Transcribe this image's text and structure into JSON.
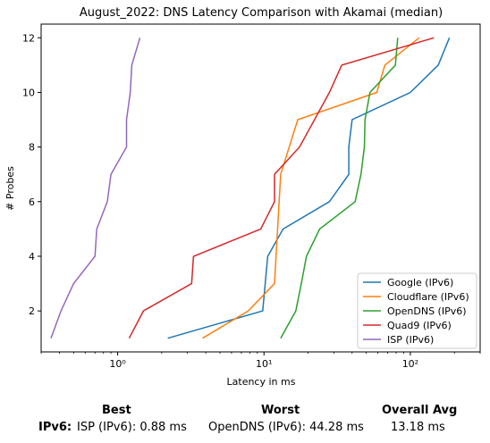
{
  "chart_data": {
    "type": "line",
    "title": "August_2022: DNS Latency Comparison with Akamai (median)",
    "xlabel": "Latency in ms",
    "ylabel": "# Probes",
    "xscale": "log",
    "xlim": [
      0.3,
      300
    ],
    "ylim": [
      0.5,
      12.5
    ],
    "x_ticks": [
      1,
      10,
      100
    ],
    "x_tick_labels": [
      "10⁰",
      "10¹",
      "10²"
    ],
    "y_ticks": [
      2,
      4,
      6,
      8,
      10,
      12
    ],
    "grid": false,
    "legend_position": "lower-right",
    "series": [
      {
        "name": "Google (IPv6)",
        "color": "#1f77b4",
        "x": [
          2.2,
          9.8,
          10.6,
          13.5,
          28.0,
          38.0,
          38.0,
          40.0,
          100.0,
          155.0,
          185.0
        ],
        "y": [
          1,
          2,
          4,
          5,
          6,
          7,
          8,
          9,
          10,
          11,
          12
        ]
      },
      {
        "name": "Cloudflare (IPv6)",
        "color": "#ff7f0e",
        "x": [
          3.8,
          7.8,
          11.8,
          13.0,
          17.0,
          59.0,
          67.0,
          115.0
        ],
        "y": [
          1,
          2,
          3,
          7,
          9,
          10,
          11,
          12
        ]
      },
      {
        "name": "OpenDNS (IPv6)",
        "color": "#2ca02c",
        "x": [
          13.0,
          16.5,
          18.0,
          19.5,
          24.0,
          42.0,
          46.0,
          48.5,
          49.0,
          53.0,
          79.0,
          82.0
        ],
        "y": [
          1,
          2,
          3,
          4,
          5,
          6,
          7,
          8,
          9,
          10,
          11,
          12
        ]
      },
      {
        "name": "Quad9 (IPv6)",
        "color": "#d62728",
        "x": [
          1.2,
          1.5,
          3.2,
          3.3,
          9.5,
          11.8,
          11.8,
          17.5,
          28.0,
          34.0,
          145.0
        ],
        "y": [
          1,
          2,
          3,
          4,
          5,
          6,
          7,
          8,
          10,
          11,
          12
        ]
      },
      {
        "name": "ISP (IPv6)",
        "color": "#9467bd",
        "x": [
          0.35,
          0.41,
          0.5,
          0.7,
          0.72,
          0.85,
          0.9,
          1.15,
          1.15,
          1.22,
          1.25,
          1.42
        ],
        "y": [
          1,
          2,
          3,
          4,
          5,
          6,
          7,
          8,
          9,
          10,
          11,
          12
        ]
      }
    ]
  },
  "summary": {
    "best_header": "Best",
    "worst_header": "Worst",
    "avg_header": "Overall Avg",
    "row_label": "IPv6",
    "row_sep": ":",
    "best_value": "ISP (IPv6): 0.88 ms",
    "worst_value": "OpenDNS (IPv6): 44.28 ms",
    "avg_value": "13.18 ms"
  }
}
